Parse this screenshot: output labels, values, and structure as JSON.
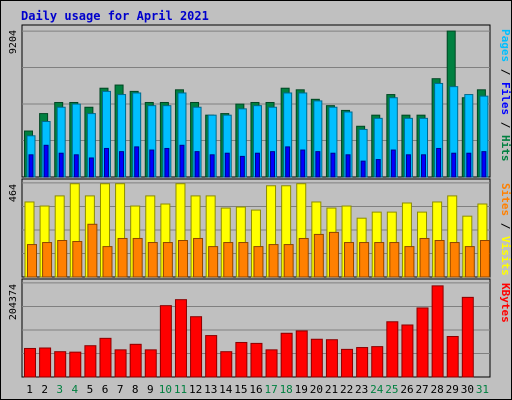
{
  "chart_data": {
    "type": "bar",
    "title": "Daily usage for April 2021",
    "days": [
      "1",
      "2",
      "3",
      "4",
      "5",
      "6",
      "7",
      "8",
      "9",
      "10",
      "11",
      "12",
      "13",
      "14",
      "15",
      "16",
      "17",
      "18",
      "19",
      "20",
      "21",
      "22",
      "23",
      "24",
      "25",
      "26",
      "27",
      "28",
      "29",
      "30",
      "31"
    ],
    "weekend_days": [
      "3",
      "4",
      "10",
      "11",
      "17",
      "18",
      "24",
      "25",
      "31"
    ],
    "panels": [
      {
        "ymax_label": "9204",
        "ymax": 9204,
        "series": [
          {
            "name": "Hits",
            "color": "#008040",
            "values": [
              2900,
              4000,
              4700,
              4700,
              4400,
              5600,
              5800,
              5400,
              4700,
              4700,
              5500,
              4700,
              3900,
              4000,
              4600,
              4700,
              4700,
              5600,
              5500,
              4900,
              4500,
              4200,
              3200,
              3900,
              5200,
              3900,
              3900,
              6200,
              9204,
              5000,
              5500
            ]
          },
          {
            "name": "Files",
            "color": "#00bfff",
            "values": [
              2600,
              3500,
              4400,
              4600,
              4000,
              5400,
              5200,
              5300,
              4500,
              4500,
              5300,
              4400,
              3900,
              3900,
              4300,
              4500,
              4400,
              5300,
              5300,
              4800,
              4400,
              4100,
              3000,
              3700,
              5000,
              3700,
              3700,
              5900,
              5700,
              5200,
              5100
            ]
          },
          {
            "name": "Pages",
            "color": "#0000ff",
            "values": [
              1400,
              2000,
              1500,
              1400,
              1200,
              1800,
              1600,
              1900,
              1700,
              1800,
              2000,
              1600,
              1400,
              1500,
              1300,
              1500,
              1600,
              1900,
              1700,
              1600,
              1500,
              1400,
              1000,
              1100,
              1700,
              1400,
              1400,
              1800,
              1500,
              1500,
              1600
            ]
          }
        ],
        "side_labels": [
          {
            "text": "Pages",
            "color": "#00bfff"
          },
          {
            "text": " / ",
            "color": "#000000"
          },
          {
            "text": "Files",
            "color": "#0000ff"
          },
          {
            "text": " / ",
            "color": "#000000"
          },
          {
            "text": "Hits",
            "color": "#008040"
          }
        ]
      },
      {
        "ymax_label": "464",
        "ymax": 464,
        "series": [
          {
            "name": "Visits",
            "color": "#ffff00",
            "values": [
              370,
              350,
              400,
              460,
              400,
              460,
              460,
              350,
              400,
              360,
              460,
              400,
              400,
              340,
              345,
              330,
              450,
              450,
              460,
              370,
              340,
              350,
              290,
              320,
              320,
              365,
              320,
              370,
              400,
              300,
              360
            ]
          },
          {
            "name": "Sites",
            "color": "#ff8000",
            "values": [
              160,
              170,
              180,
              175,
              260,
              150,
              190,
              190,
              170,
              170,
              180,
              190,
              150,
              170,
              170,
              150,
              160,
              160,
              190,
              210,
              220,
              170,
              170,
              170,
              170,
              150,
              190,
              180,
              170,
              150,
              180
            ]
          }
        ],
        "side_labels": [
          {
            "text": "Sites",
            "color": "#ff8000"
          },
          {
            "text": " / ",
            "color": "#000000"
          },
          {
            "text": "Visits",
            "color": "#ffff00"
          }
        ]
      },
      {
        "ymax_label": "204374",
        "ymax": 204374,
        "series": [
          {
            "name": "KBytes",
            "color": "#ff0000",
            "values": [
              62000,
              63000,
              55000,
              54000,
              68000,
              84000,
              59000,
              71000,
              59000,
              155000,
              168000,
              131000,
              90000,
              55000,
              75000,
              73000,
              59000,
              95000,
              100000,
              82000,
              81000,
              60000,
              64000,
              66000,
              120000,
              113000,
              150000,
              198000,
              88000,
              173000,
              0
            ]
          }
        ],
        "side_labels": [
          {
            "text": "KBytes",
            "color": "#ff0000"
          }
        ]
      }
    ]
  }
}
